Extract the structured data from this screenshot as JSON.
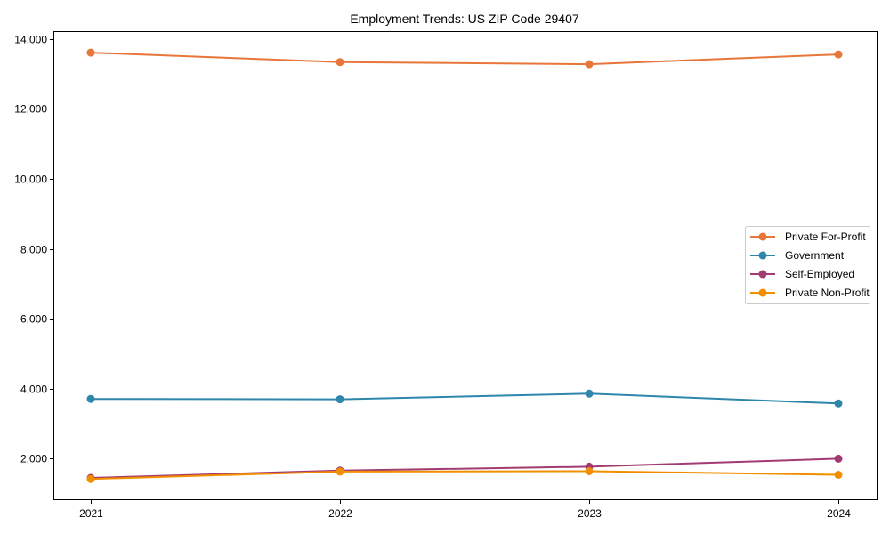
{
  "chart_data": {
    "type": "line",
    "title": "Employment Trends: US ZIP Code 29407",
    "xlabel": "",
    "ylabel": "",
    "categories": [
      "2021",
      "2022",
      "2023",
      "2024"
    ],
    "ylim": [
      850,
      14250
    ],
    "yticks": [
      2000,
      4000,
      6000,
      8000,
      10000,
      12000,
      14000
    ],
    "ytick_labels": [
      "2,000",
      "4,000",
      "6,000",
      "8,000",
      "10,000",
      "12,000",
      "14,000"
    ],
    "grid": false,
    "legend_position": "center right",
    "series": [
      {
        "name": "Private For-Profit",
        "color": "#e8763a",
        "values": [
          13610,
          13340,
          13280,
          13560
        ]
      },
      {
        "name": "Government",
        "color": "#2e86ab",
        "values": [
          3710,
          3700,
          3860,
          3580
        ]
      },
      {
        "name": "Self-Employed",
        "color": "#a23b72",
        "values": [
          1450,
          1660,
          1770,
          2000
        ]
      },
      {
        "name": "Private Non-Profit",
        "color": "#f18f01",
        "values": [
          1420,
          1630,
          1640,
          1540
        ]
      }
    ]
  }
}
